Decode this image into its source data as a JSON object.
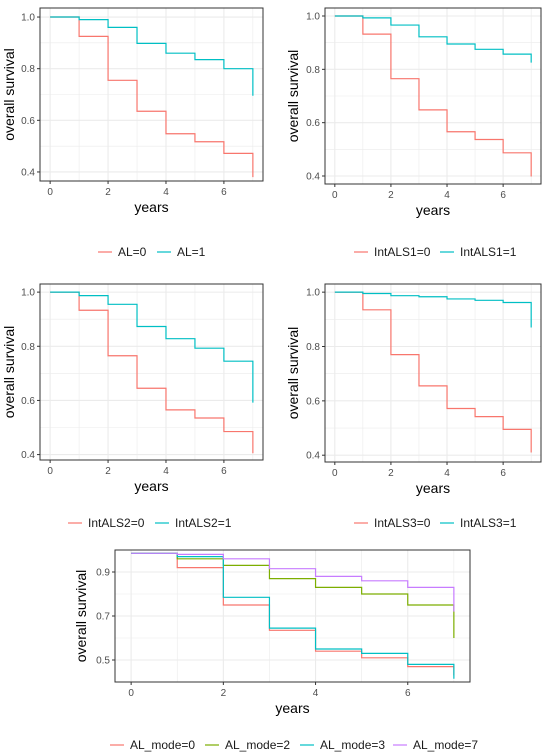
{
  "colors": {
    "red": "#F8766D",
    "teal": "#00BFC4",
    "olive": "#7CAE00",
    "purple": "#C77CFF",
    "grid": "#ebebeb",
    "frame": "#333333"
  },
  "chart_data": [
    {
      "type": "line",
      "step": true,
      "xlabel": "years",
      "ylabel": "overall survival",
      "xlim": [
        -0.35,
        7.35
      ],
      "ylim": [
        0.365,
        1.035
      ],
      "x_ticks": [
        0,
        2,
        4,
        6
      ],
      "y_ticks": [
        0.4,
        0.6,
        0.8,
        1.0
      ],
      "y_tick_labels": [
        "0.4",
        "0.6",
        "0.8",
        "1.0"
      ],
      "grid": true,
      "legend": "bottom",
      "series": [
        {
          "name": "AL=0",
          "color": "red",
          "x": [
            0,
            1,
            2,
            3,
            4,
            5,
            6,
            7,
            7
          ],
          "y": [
            1.0,
            0.925,
            0.755,
            0.635,
            0.548,
            0.517,
            0.472,
            0.472,
            0.38
          ]
        },
        {
          "name": "AL=1",
          "color": "teal",
          "x": [
            0,
            1,
            2,
            3,
            4,
            5,
            6,
            7,
            7
          ],
          "y": [
            1.0,
            0.99,
            0.96,
            0.898,
            0.86,
            0.835,
            0.8,
            0.8,
            0.695
          ]
        }
      ]
    },
    {
      "type": "line",
      "step": true,
      "xlabel": "years",
      "ylabel": "overall survival",
      "xlim": [
        -0.35,
        7.35
      ],
      "ylim": [
        0.37,
        1.03
      ],
      "x_ticks": [
        0,
        2,
        4,
        6
      ],
      "y_ticks": [
        0.4,
        0.6,
        0.8,
        1.0
      ],
      "y_tick_labels": [
        "0.4",
        "0.6",
        "0.8",
        "1.0"
      ],
      "grid": true,
      "legend": "bottom",
      "series": [
        {
          "name": "IntALS1=0",
          "color": "red",
          "x": [
            0,
            1,
            2,
            3,
            4,
            5,
            6,
            7,
            7
          ],
          "y": [
            1.0,
            0.932,
            0.765,
            0.648,
            0.566,
            0.537,
            0.487,
            0.487,
            0.398
          ]
        },
        {
          "name": "IntALS1=1",
          "color": "teal",
          "x": [
            0,
            1,
            2,
            3,
            4,
            5,
            6,
            7,
            7
          ],
          "y": [
            1.0,
            0.993,
            0.966,
            0.922,
            0.895,
            0.875,
            0.857,
            0.857,
            0.825
          ]
        }
      ]
    },
    {
      "type": "line",
      "step": true,
      "xlabel": "years",
      "ylabel": "overall survival",
      "xlim": [
        -0.35,
        7.35
      ],
      "ylim": [
        0.38,
        1.03
      ],
      "x_ticks": [
        0,
        2,
        4,
        6
      ],
      "y_ticks": [
        0.4,
        0.6,
        0.8,
        1.0
      ],
      "y_tick_labels": [
        "0.4",
        "0.6",
        "0.8",
        "1.0"
      ],
      "grid": true,
      "legend": "bottom",
      "series": [
        {
          "name": "IntALS2=0",
          "color": "red",
          "x": [
            0,
            1,
            2,
            3,
            4,
            5,
            6,
            7,
            7
          ],
          "y": [
            1.0,
            0.933,
            0.765,
            0.645,
            0.565,
            0.535,
            0.485,
            0.485,
            0.405
          ]
        },
        {
          "name": "IntALS2=1",
          "color": "teal",
          "x": [
            0,
            1,
            2,
            3,
            4,
            5,
            6,
            7,
            7
          ],
          "y": [
            1.0,
            0.987,
            0.955,
            0.873,
            0.828,
            0.793,
            0.745,
            0.745,
            0.592
          ]
        }
      ]
    },
    {
      "type": "line",
      "step": true,
      "xlabel": "years",
      "ylabel": "overall survival",
      "xlim": [
        -0.35,
        7.35
      ],
      "ylim": [
        0.375,
        1.03
      ],
      "x_ticks": [
        0,
        2,
        4,
        6
      ],
      "y_ticks": [
        0.4,
        0.6,
        0.8,
        1.0
      ],
      "y_tick_labels": [
        "0.4",
        "0.6",
        "0.8",
        "1.0"
      ],
      "grid": true,
      "legend": "bottom",
      "series": [
        {
          "name": "IntALS3=0",
          "color": "red",
          "x": [
            0,
            1,
            2,
            3,
            4,
            5,
            6,
            7,
            7
          ],
          "y": [
            1.0,
            0.935,
            0.77,
            0.655,
            0.572,
            0.542,
            0.495,
            0.495,
            0.41
          ]
        },
        {
          "name": "IntALS3=1",
          "color": "teal",
          "x": [
            0,
            1,
            2,
            3,
            4,
            5,
            6,
            7,
            7
          ],
          "y": [
            1.0,
            0.995,
            0.987,
            0.983,
            0.975,
            0.97,
            0.962,
            0.962,
            0.87
          ]
        }
      ]
    },
    {
      "type": "line",
      "step": true,
      "xlabel": "years",
      "ylabel": "overall survival",
      "xlim": [
        -0.35,
        7.35
      ],
      "ylim": [
        0.4,
        1.0
      ],
      "x_ticks": [
        0,
        2,
        4,
        6
      ],
      "y_ticks": [
        0.5,
        0.7,
        0.9
      ],
      "y_tick_labels": [
        "0.5",
        "0.7",
        "0.9"
      ],
      "grid": true,
      "legend": "bottom",
      "series": [
        {
          "name": "AL_mode=0",
          "color": "red",
          "x": [
            0,
            1,
            2,
            3,
            4,
            5,
            6,
            7,
            7
          ],
          "y": [
            0.985,
            0.92,
            0.75,
            0.635,
            0.54,
            0.51,
            0.47,
            0.47,
            0.43
          ]
        },
        {
          "name": "AL_mode=2",
          "color": "olive",
          "x": [
            0,
            1,
            2,
            3,
            4,
            5,
            6,
            7,
            7
          ],
          "y": [
            0.985,
            0.96,
            0.93,
            0.87,
            0.83,
            0.8,
            0.75,
            0.75,
            0.6
          ]
        },
        {
          "name": "AL_mode=3",
          "color": "teal",
          "x": [
            0,
            1,
            2,
            3,
            4,
            5,
            6,
            7,
            7
          ],
          "y": [
            0.985,
            0.97,
            0.785,
            0.645,
            0.55,
            0.53,
            0.48,
            0.48,
            0.415
          ]
        },
        {
          "name": "AL_mode=7",
          "color": "purple",
          "x": [
            0,
            1,
            2,
            3,
            4,
            5,
            6,
            7,
            7
          ],
          "y": [
            0.985,
            0.98,
            0.96,
            0.915,
            0.88,
            0.86,
            0.83,
            0.83,
            0.72
          ]
        }
      ]
    }
  ]
}
